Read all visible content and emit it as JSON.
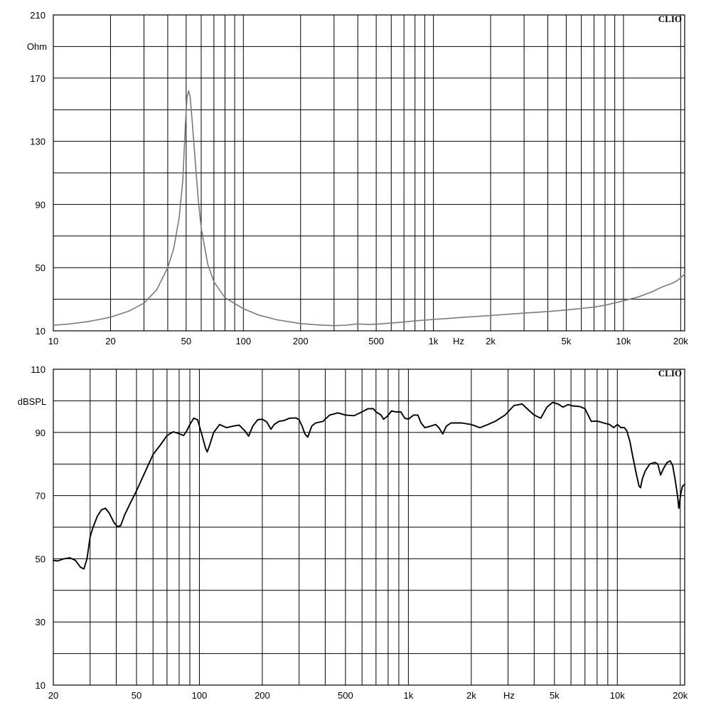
{
  "chart_data": [
    {
      "type": "line",
      "chart_id": "impedance",
      "watermark": "CLIO",
      "x_scale": "log",
      "xlim": [
        10,
        21000
      ],
      "ylim": [
        10,
        210
      ],
      "grid": true,
      "ylabel": "Ohm",
      "xlabel": "Hz",
      "x_tick_labels": [
        {
          "x": 10,
          "label": "10"
        },
        {
          "x": 20,
          "label": "20"
        },
        {
          "x": 50,
          "label": "50"
        },
        {
          "x": 100,
          "label": "100"
        },
        {
          "x": 200,
          "label": "200"
        },
        {
          "x": 500,
          "label": "500"
        },
        {
          "x": 1000,
          "label": "1k"
        },
        {
          "x": 2000,
          "label": "2k"
        },
        {
          "x": 5000,
          "label": "5k"
        },
        {
          "x": 10000,
          "label": "10k"
        },
        {
          "x": 20000,
          "label": "20k"
        }
      ],
      "y_tick_labels": [
        {
          "y": 10,
          "label": "10"
        },
        {
          "y": 50,
          "label": "50"
        },
        {
          "y": 90,
          "label": "90"
        },
        {
          "y": 130,
          "label": "130"
        },
        {
          "y": 170,
          "label": "170"
        },
        {
          "y": 210,
          "label": "210"
        }
      ],
      "series": [
        {
          "color": "#7a7a7a",
          "points": [
            [
              10,
              13.5
            ],
            [
              12,
              14.3
            ],
            [
              15,
              15.7
            ],
            [
              18,
              17.5
            ],
            [
              20,
              18.7
            ],
            [
              25,
              22.5
            ],
            [
              30,
              27.5
            ],
            [
              35,
              36
            ],
            [
              40,
              50
            ],
            [
              43,
              62
            ],
            [
              46,
              82
            ],
            [
              48,
              105
            ],
            [
              49.5,
              140
            ],
            [
              50.5,
              158
            ],
            [
              51.5,
              162
            ],
            [
              52.5,
              158
            ],
            [
              54,
              140
            ],
            [
              56,
              115
            ],
            [
              58,
              92
            ],
            [
              60,
              75
            ],
            [
              65,
              52
            ],
            [
              70,
              41
            ],
            [
              80,
              31
            ],
            [
              100,
              24
            ],
            [
              120,
              20
            ],
            [
              150,
              17
            ],
            [
              200,
              14.6
            ],
            [
              250,
              13.7
            ],
            [
              300,
              13.3
            ],
            [
              350,
              13.6
            ],
            [
              400,
              14.4
            ],
            [
              450,
              14
            ],
            [
              500,
              14.2
            ],
            [
              600,
              14.9
            ],
            [
              700,
              15.6
            ],
            [
              800,
              16.3
            ],
            [
              1000,
              17.2
            ],
            [
              1500,
              18.7
            ],
            [
              2000,
              19.7
            ],
            [
              3000,
              21.2
            ],
            [
              4000,
              22.2
            ],
            [
              5000,
              23.2
            ],
            [
              6000,
              24.2
            ],
            [
              7000,
              25
            ],
            [
              8000,
              26.2
            ],
            [
              10000,
              29
            ],
            [
              12000,
              31.5
            ],
            [
              14000,
              34.5
            ],
            [
              16000,
              37.8
            ],
            [
              18000,
              40
            ],
            [
              19000,
              41.5
            ],
            [
              20000,
              43.5
            ],
            [
              21000,
              46
            ]
          ]
        }
      ]
    },
    {
      "type": "line",
      "chart_id": "spl",
      "watermark": "CLIO",
      "x_scale": "log",
      "xlim": [
        20,
        21000
      ],
      "ylim": [
        10,
        110
      ],
      "grid": true,
      "ylabel": "dBSPL",
      "xlabel": "Hz",
      "x_tick_labels": [
        {
          "x": 20,
          "label": "20"
        },
        {
          "x": 50,
          "label": "50"
        },
        {
          "x": 100,
          "label": "100"
        },
        {
          "x": 200,
          "label": "200"
        },
        {
          "x": 500,
          "label": "500"
        },
        {
          "x": 1000,
          "label": "1k"
        },
        {
          "x": 2000,
          "label": "2k"
        },
        {
          "x": 5000,
          "label": "5k"
        },
        {
          "x": 10000,
          "label": "10k"
        },
        {
          "x": 20000,
          "label": "20k"
        }
      ],
      "y_tick_labels": [
        {
          "y": 10,
          "label": "10"
        },
        {
          "y": 30,
          "label": "30"
        },
        {
          "y": 50,
          "label": "50"
        },
        {
          "y": 70,
          "label": "70"
        },
        {
          "y": 90,
          "label": "90"
        },
        {
          "y": 110,
          "label": "110"
        }
      ],
      "series": [
        {
          "color": "#000000",
          "points": [
            [
              20,
              49.5
            ],
            [
              21,
              49.3
            ],
            [
              22.5,
              50
            ],
            [
              24,
              50.3
            ],
            [
              25.5,
              49.5
            ],
            [
              27,
              47.3
            ],
            [
              28,
              46.8
            ],
            [
              29,
              50
            ],
            [
              30,
              57
            ],
            [
              31,
              60
            ],
            [
              32.5,
              63.5
            ],
            [
              34,
              65.5
            ],
            [
              35.5,
              66
            ],
            [
              37,
              64.5
            ],
            [
              39,
              61.5
            ],
            [
              40.5,
              60.2
            ],
            [
              42,
              60.5
            ],
            [
              44,
              64
            ],
            [
              47,
              68
            ],
            [
              50,
              71.5
            ],
            [
              55,
              77.5
            ],
            [
              60,
              83
            ],
            [
              65,
              86
            ],
            [
              70,
              89
            ],
            [
              75,
              90.2
            ],
            [
              80,
              89.6
            ],
            [
              84,
              89
            ],
            [
              87,
              90.5
            ],
            [
              90,
              92.5
            ],
            [
              94,
              94.5
            ],
            [
              98,
              94
            ],
            [
              102,
              90
            ],
            [
              105,
              87
            ],
            [
              107,
              85
            ],
            [
              109,
              83.8
            ],
            [
              112,
              86
            ],
            [
              117,
              90
            ],
            [
              125,
              92.5
            ],
            [
              135,
              91.5
            ],
            [
              145,
              92
            ],
            [
              155,
              92.3
            ],
            [
              165,
              90.5
            ],
            [
              172,
              88.8
            ],
            [
              180,
              92
            ],
            [
              190,
              94
            ],
            [
              200,
              94.2
            ],
            [
              210,
              93.3
            ],
            [
              220,
              91
            ],
            [
              228,
              92.5
            ],
            [
              240,
              93.5
            ],
            [
              255,
              93.8
            ],
            [
              270,
              94.5
            ],
            [
              290,
              94.6
            ],
            [
              300,
              94
            ],
            [
              310,
              92
            ],
            [
              320,
              89.5
            ],
            [
              330,
              88.5
            ],
            [
              345,
              92
            ],
            [
              360,
              93
            ],
            [
              390,
              93.5
            ],
            [
              420,
              95.5
            ],
            [
              460,
              96.2
            ],
            [
              500,
              95.5
            ],
            [
              550,
              95.3
            ],
            [
              600,
              96.5
            ],
            [
              640,
              97.5
            ],
            [
              680,
              97.5
            ],
            [
              700,
              96.5
            ],
            [
              740,
              95.5
            ],
            [
              760,
              94.2
            ],
            [
              790,
              95
            ],
            [
              830,
              96.8
            ],
            [
              870,
              96.5
            ],
            [
              920,
              96.5
            ],
            [
              960,
              94.5
            ],
            [
              1000,
              94.2
            ],
            [
              1060,
              95.5
            ],
            [
              1110,
              95.5
            ],
            [
              1150,
              93
            ],
            [
              1200,
              91.5
            ],
            [
              1280,
              92
            ],
            [
              1350,
              92.5
            ],
            [
              1400,
              91.5
            ],
            [
              1460,
              89.5
            ],
            [
              1520,
              92
            ],
            [
              1600,
              93
            ],
            [
              1800,
              93
            ],
            [
              2000,
              92.5
            ],
            [
              2200,
              91.5
            ],
            [
              2400,
              92.5
            ],
            [
              2600,
              93.5
            ],
            [
              2900,
              95.5
            ],
            [
              3200,
              98.5
            ],
            [
              3500,
              99
            ],
            [
              3700,
              97.5
            ],
            [
              4000,
              95.5
            ],
            [
              4300,
              94.5
            ],
            [
              4600,
              98
            ],
            [
              4900,
              99.5
            ],
            [
              5200,
              99
            ],
            [
              5500,
              98
            ],
            [
              5800,
              98.8
            ],
            [
              6100,
              98.4
            ],
            [
              6600,
              98.2
            ],
            [
              7000,
              97.5
            ],
            [
              7500,
              93.5
            ],
            [
              8000,
              93.6
            ],
            [
              8600,
              93
            ],
            [
              9200,
              92.5
            ],
            [
              9600,
              91.5
            ],
            [
              10000,
              92.5
            ],
            [
              10400,
              91.5
            ],
            [
              10800,
              91.5
            ],
            [
              11100,
              90.5
            ],
            [
              11500,
              87
            ],
            [
              11800,
              83
            ],
            [
              12100,
              79.5
            ],
            [
              12400,
              76
            ],
            [
              12700,
              73
            ],
            [
              12900,
              72.5
            ],
            [
              13200,
              75.5
            ],
            [
              13600,
              77.8
            ],
            [
              14300,
              80
            ],
            [
              15100,
              80.5
            ],
            [
              15600,
              80
            ],
            [
              16100,
              76.5
            ],
            [
              16600,
              78.5
            ],
            [
              17300,
              80.5
            ],
            [
              17900,
              81
            ],
            [
              18400,
              79.5
            ],
            [
              18900,
              75
            ],
            [
              19400,
              70
            ],
            [
              19700,
              66
            ],
            [
              20100,
              70.5
            ],
            [
              20500,
              73
            ],
            [
              21000,
              73.5
            ]
          ]
        }
      ]
    }
  ]
}
